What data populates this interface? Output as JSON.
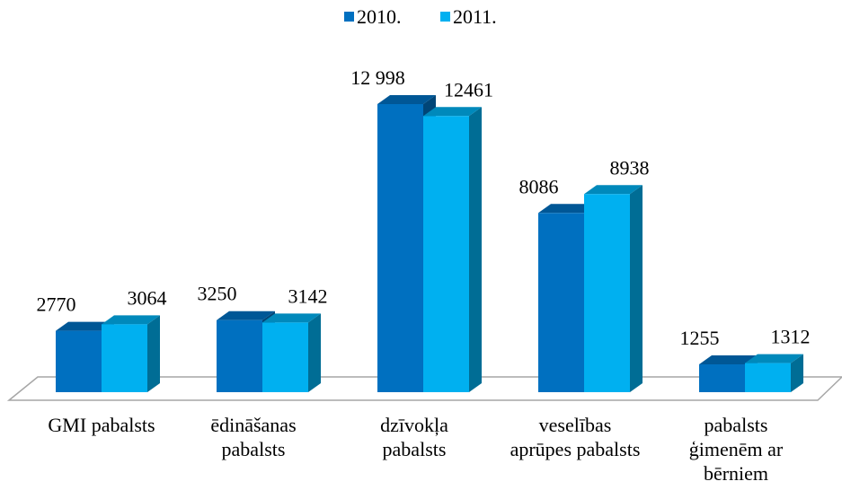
{
  "chart_data": {
    "type": "bar3d",
    "categories": [
      "GMI pabalsts",
      "ēdināšanas pabalsts",
      "dzīvokļa pabalsts",
      "veselības aprūpes pabalsts",
      "pabalsts ģimenēm ar bērniem"
    ],
    "series": [
      {
        "name": "2010.",
        "color": "#0070c0",
        "values": [
          2770,
          3250,
          12998,
          8086,
          1255
        ],
        "value_labels": [
          "2770",
          "3250",
          "12 998",
          "8086",
          "1255"
        ]
      },
      {
        "name": "2011.",
        "color": "#00b0f0",
        "values": [
          3064,
          3142,
          12461,
          8938,
          1312
        ]
      }
    ],
    "legend": "top"
  }
}
